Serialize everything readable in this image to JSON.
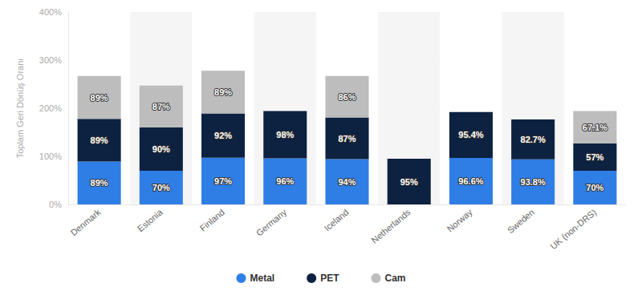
{
  "chart_data": {
    "type": "bar",
    "stacked": true,
    "data_labels": true,
    "grid": true,
    "legend": "bottom",
    "y_label": "Toplam Geri Dönüş Oranı",
    "categories": [
      "Denmark",
      "Estonia",
      "Finland",
      "Germany",
      "Iceland",
      "Netherlands",
      "Norway",
      "Sweden",
      "UK (non-DRS)"
    ],
    "ylim": [
      0,
      400
    ],
    "yticks": [
      {
        "value": 0,
        "label": "0%"
      },
      {
        "value": 100,
        "label": "100%"
      },
      {
        "value": 200,
        "label": "200%"
      },
      {
        "value": 300,
        "label": "300%"
      },
      {
        "value": 400,
        "label": "400%"
      }
    ],
    "series": [
      {
        "name": "Metal",
        "color": "#2f7ee6",
        "values": [
          89,
          70,
          97,
          96,
          94,
          null,
          96.6,
          93.8,
          70
        ],
        "value_labels": [
          "89%",
          "70%",
          "97%",
          "96%",
          "94%",
          null,
          "96.6%",
          "93.8%",
          "70%"
        ]
      },
      {
        "name": "PET",
        "color": "#0d2140",
        "values": [
          89,
          90,
          92,
          98,
          87,
          95,
          95.4,
          82.7,
          57
        ],
        "value_labels": [
          "89%",
          "90%",
          "92%",
          "98%",
          "87%",
          "95%",
          "95.4%",
          "82.7%",
          "57%"
        ]
      },
      {
        "name": "Cam",
        "color": "#bdbdbd",
        "values": [
          89,
          87,
          89,
          null,
          86,
          null,
          null,
          null,
          67.1
        ],
        "value_labels": [
          "89%",
          "87%",
          "89%",
          null,
          "86%",
          null,
          null,
          null,
          "67.1%"
        ]
      }
    ]
  }
}
